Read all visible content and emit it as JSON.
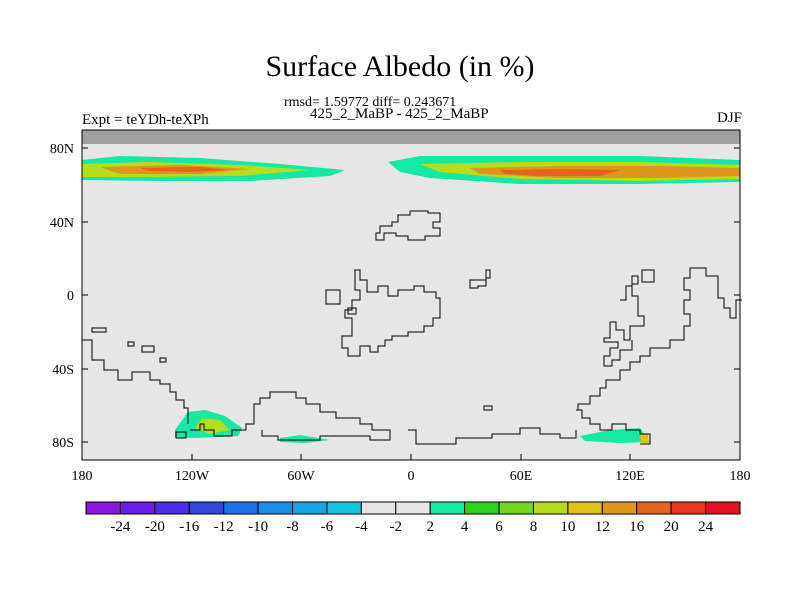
{
  "title": "Surface Albedo (in %)",
  "stats": "rmsd= 1.59772 diff= 0.243671",
  "subtitle": "425_2_MaBP - 425_2_MaBP",
  "experiment": "Expt = teYDh-teXPh",
  "season": "DJF",
  "map": {
    "lat_ticks": [
      "80N",
      "40N",
      "0",
      "40S",
      "80S"
    ],
    "lon_ticks": [
      "180",
      "120W",
      "60W",
      "0",
      "60E",
      "120E",
      "180"
    ],
    "background_color": "#e6e6e6",
    "missing_color": "#a0a0a0"
  },
  "colorbar": {
    "labels": [
      "-24",
      "-20",
      "-16",
      "-12",
      "-10",
      "-8",
      "-6",
      "-4",
      "-2",
      "2",
      "4",
      "6",
      "8",
      "10",
      "12",
      "16",
      "20",
      "24"
    ],
    "colors": [
      "#8a17e0",
      "#6a1ee8",
      "#4b2de8",
      "#2f49e0",
      "#1c6fe6",
      "#1b8ee6",
      "#17a6e0",
      "#16c2e0",
      "#e6e6e6",
      "#16e8a6",
      "#2ed31f",
      "#74d61f",
      "#b5dd1c",
      "#dec21c",
      "#e0951c",
      "#e3641c",
      "#e6381c",
      "#e3121c"
    ]
  }
}
